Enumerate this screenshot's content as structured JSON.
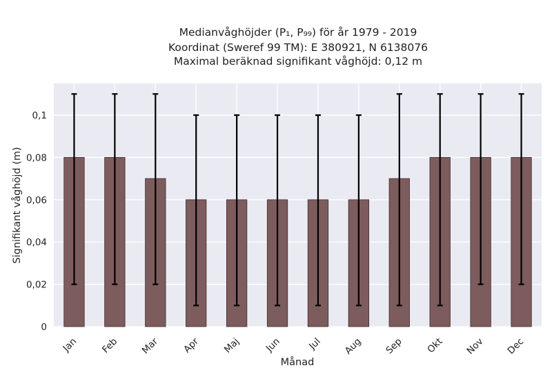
{
  "chart_data": {
    "type": "bar",
    "title_lines": [
      "Medianvåghöjder (P₁, P₉₉) för år 1979 - 2019",
      "Koordinat (Sweref 99 TM): E 380921, N 6138076",
      "Maximal beräknad signifikant våghöjd: 0,12 m"
    ],
    "xlabel": "Månad",
    "ylabel": "Signifikant våghöjd (m)",
    "categories": [
      "Jan",
      "Feb",
      "Mar",
      "Apr",
      "Maj",
      "Jun",
      "Jul",
      "Aug",
      "Sep",
      "Okt",
      "Nov",
      "Dec"
    ],
    "values": [
      0.08,
      0.08,
      0.07,
      0.06,
      0.06,
      0.06,
      0.06,
      0.06,
      0.07,
      0.08,
      0.08,
      0.08
    ],
    "p1": [
      0.02,
      0.02,
      0.02,
      0.01,
      0.01,
      0.01,
      0.01,
      0.01,
      0.01,
      0.01,
      0.02,
      0.02
    ],
    "p99": [
      0.11,
      0.11,
      0.11,
      0.1,
      0.1,
      0.1,
      0.1,
      0.1,
      0.11,
      0.11,
      0.11,
      0.11
    ],
    "ylim": [
      0,
      0.115
    ],
    "yticks": [
      0,
      0.02,
      0.04,
      0.06,
      0.08,
      0.1
    ],
    "ytick_labels": [
      "0",
      "0,02",
      "0,04",
      "0,06",
      "0,08",
      "0,1"
    ],
    "grid": true,
    "colors": {
      "bar": "#7d5c5d",
      "bar_edge": "#3d2c2c",
      "background": "#eaeaf2",
      "grid": "#ffffff",
      "error": "#000000"
    }
  }
}
